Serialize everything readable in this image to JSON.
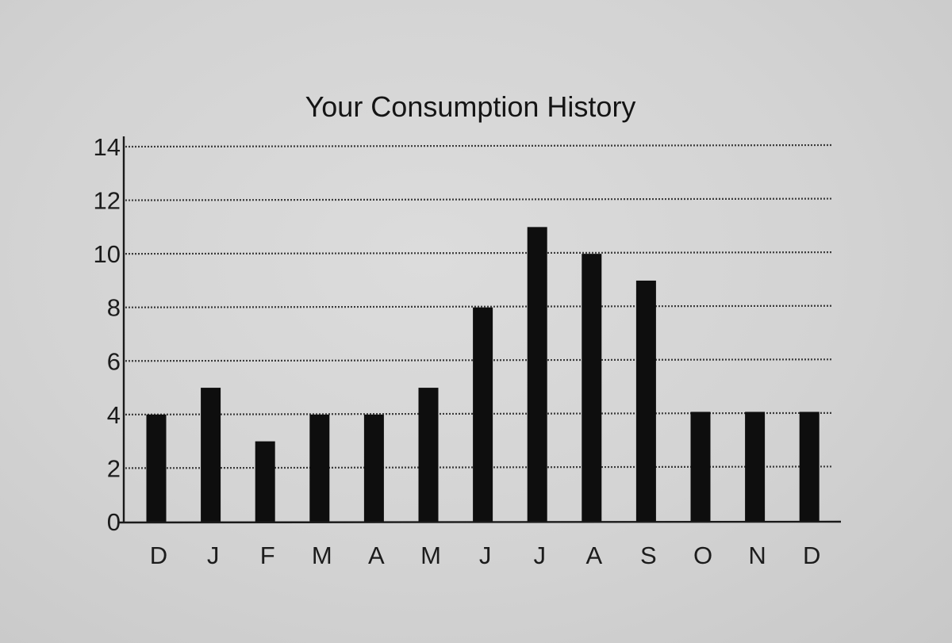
{
  "chart_data": {
    "type": "bar",
    "title": "Your Consumption History",
    "xlabel": "",
    "ylabel": "",
    "categories": [
      "D",
      "J",
      "F",
      "M",
      "A",
      "M",
      "J",
      "J",
      "A",
      "S",
      "O",
      "N",
      "D"
    ],
    "values": [
      4,
      5,
      3,
      4,
      4,
      5,
      8,
      11,
      10,
      9,
      4.1,
      4.1,
      4.1
    ],
    "ylim": [
      0,
      14
    ],
    "yticks": [
      "0",
      "2",
      "4",
      "6",
      "8",
      "10",
      "12",
      "14"
    ],
    "grid": true,
    "legend": "none",
    "colors": {
      "bar": "#0e0e0e",
      "grid": "#3a3a3a",
      "axis": "#1a1a1a",
      "text": "#1c1c1c",
      "background": "#d3d3d3"
    }
  }
}
